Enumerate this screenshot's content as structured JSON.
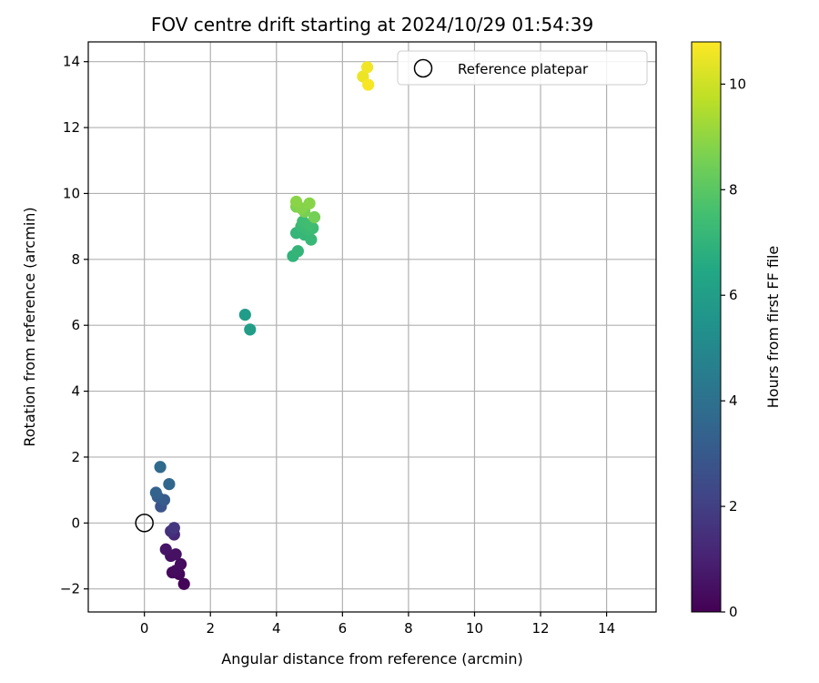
{
  "chart_data": {
    "type": "scatter",
    "title": "FOV centre drift starting at 2024/10/29 01:54:39",
    "xlabel": "Angular distance from reference (arcmin)",
    "ylabel": "Rotation from reference (arcmin)",
    "xlim": [
      -1.7,
      15.5
    ],
    "ylim": [
      -2.7,
      14.6
    ],
    "xticks": [
      0,
      2,
      4,
      6,
      8,
      10,
      12,
      14
    ],
    "yticks": [
      -2,
      0,
      2,
      4,
      6,
      8,
      10,
      12,
      14
    ],
    "grid": true,
    "legend": {
      "placement": "top-right",
      "entries": [
        "Reference platepar"
      ]
    },
    "reference_point": {
      "x": 0,
      "y": 0,
      "label": "Reference platepar"
    },
    "colorbar": {
      "label": "Hours from first FF file",
      "range": [
        0,
        10.8
      ],
      "ticks": [
        0,
        2,
        4,
        6,
        8,
        10
      ],
      "colormap": "viridis"
    },
    "series": [
      {
        "points": [
          {
            "x": 1.2,
            "y": -1.85,
            "c": 0.1
          },
          {
            "x": 1.05,
            "y": -1.55,
            "c": 0.2
          },
          {
            "x": 0.85,
            "y": -1.5,
            "c": 0.25
          },
          {
            "x": 0.95,
            "y": -1.45,
            "c": 0.3
          },
          {
            "x": 1.1,
            "y": -1.25,
            "c": 0.35
          },
          {
            "x": 0.8,
            "y": -1.0,
            "c": 0.45
          },
          {
            "x": 0.95,
            "y": -0.95,
            "c": 0.5
          },
          {
            "x": 0.65,
            "y": -0.8,
            "c": 0.6
          },
          {
            "x": 0.9,
            "y": -0.35,
            "c": 1.2
          },
          {
            "x": 0.8,
            "y": -0.25,
            "c": 1.5
          },
          {
            "x": 0.9,
            "y": -0.15,
            "c": 1.7
          },
          {
            "x": 0.5,
            "y": 0.5,
            "c": 2.8
          },
          {
            "x": 0.6,
            "y": 0.7,
            "c": 3.1
          },
          {
            "x": 0.4,
            "y": 0.8,
            "c": 3.2
          },
          {
            "x": 0.35,
            "y": 0.92,
            "c": 3.4
          },
          {
            "x": 0.75,
            "y": 1.18,
            "c": 3.6
          },
          {
            "x": 0.48,
            "y": 1.7,
            "c": 3.7
          },
          {
            "x": 3.05,
            "y": 6.32,
            "c": 5.9
          },
          {
            "x": 3.2,
            "y": 5.87,
            "c": 6.0
          },
          {
            "x": 4.5,
            "y": 8.1,
            "c": 7.0
          },
          {
            "x": 4.65,
            "y": 8.25,
            "c": 7.05
          },
          {
            "x": 4.6,
            "y": 8.8,
            "c": 7.1
          },
          {
            "x": 4.85,
            "y": 8.75,
            "c": 7.15
          },
          {
            "x": 5.05,
            "y": 8.6,
            "c": 7.2
          },
          {
            "x": 4.75,
            "y": 9.0,
            "c": 7.25
          },
          {
            "x": 4.95,
            "y": 8.9,
            "c": 7.3
          },
          {
            "x": 5.1,
            "y": 8.95,
            "c": 7.35
          },
          {
            "x": 4.8,
            "y": 9.15,
            "c": 7.4
          },
          {
            "x": 5.0,
            "y": 9.05,
            "c": 7.45
          },
          {
            "x": 5.15,
            "y": 9.28,
            "c": 8.5
          },
          {
            "x": 4.85,
            "y": 9.45,
            "c": 8.6
          },
          {
            "x": 4.6,
            "y": 9.6,
            "c": 8.7
          },
          {
            "x": 4.75,
            "y": 9.55,
            "c": 8.8
          },
          {
            "x": 5.0,
            "y": 9.7,
            "c": 8.85
          },
          {
            "x": 4.6,
            "y": 9.75,
            "c": 8.9
          },
          {
            "x": 6.62,
            "y": 13.55,
            "c": 10.5
          },
          {
            "x": 6.75,
            "y": 13.83,
            "c": 10.6
          },
          {
            "x": 6.78,
            "y": 13.3,
            "c": 10.7
          }
        ]
      }
    ]
  }
}
